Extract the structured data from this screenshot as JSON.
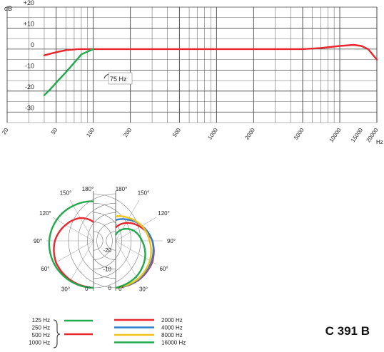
{
  "model_label": "C 391 B",
  "colors": {
    "red": "#e8262c",
    "green": "#1faa4b",
    "blue": "#2f7fd1",
    "yellow": "#f2c218",
    "grid": "#444444"
  },
  "chart_data": [
    {
      "type": "line",
      "name": "frequency-response",
      "ylabel": "dB",
      "xlabel": "Hz",
      "xscale": "log",
      "xlim": [
        20,
        20000
      ],
      "ylim": [
        -35,
        20
      ],
      "y_ticks": [
        "+20",
        "+10",
        "0",
        "-10",
        "-20",
        "-30"
      ],
      "y_tick_values": [
        20,
        10,
        0,
        -10,
        -20,
        -30
      ],
      "x_ticks": [
        "20",
        "50",
        "100",
        "200",
        "500",
        "1000",
        "2000",
        "5000",
        "10000",
        "15000",
        "20000"
      ],
      "x_tick_values": [
        20,
        50,
        100,
        200,
        500,
        1000,
        2000,
        5000,
        10000,
        15000,
        20000
      ],
      "annotation": "75 Hz",
      "series": [
        {
          "color": "red",
          "x": [
            40,
            50,
            60,
            75,
            100,
            200,
            500,
            1000,
            2000,
            5000,
            7000,
            10000,
            13000,
            15000,
            17000,
            20000
          ],
          "y": [
            -3,
            -1.5,
            -0.5,
            0,
            0,
            0,
            0,
            0,
            0,
            0,
            0.5,
            1.5,
            2,
            1.5,
            0,
            -5
          ]
        },
        {
          "color": "green",
          "x": [
            40,
            45,
            50,
            60,
            70,
            75,
            80,
            100
          ],
          "y": [
            -22,
            -19,
            -16,
            -11,
            -6.5,
            -4.5,
            -2.5,
            0
          ]
        }
      ]
    },
    {
      "type": "polar",
      "name": "polar-patterns",
      "angle_labels": [
        "0°",
        "30°",
        "60°",
        "90°",
        "120°",
        "150°",
        "180°"
      ],
      "angle_values": [
        0,
        30,
        60,
        90,
        120,
        150,
        180
      ],
      "ring_labels": [
        "-10",
        "-20"
      ],
      "ring_values": [
        -10,
        -20
      ],
      "ring_label_zero": "0",
      "rlim_db": [
        -25,
        0
      ],
      "left_legend": [
        "125 Hz",
        "250 Hz",
        "500 Hz",
        "1000 Hz"
      ],
      "right_legend": [
        "2000 Hz",
        "4000 Hz",
        "8000 Hz",
        "16000 Hz"
      ],
      "left_series": [
        {
          "color": "red",
          "frequency_group": "125–1000 Hz",
          "angles": [
            0,
            30,
            60,
            90,
            120,
            150,
            180
          ],
          "db": [
            0,
            -0.8,
            -2,
            -4.5,
            -8,
            -11,
            -15
          ]
        },
        {
          "color": "green",
          "frequency_group": "125 Hz",
          "angles": [
            0,
            30,
            60,
            90,
            120,
            150,
            180
          ],
          "db": [
            0,
            -0.3,
            -0.8,
            -1.5,
            -2.5,
            -3.5,
            -4
          ]
        }
      ],
      "right_series": [
        {
          "color": "red",
          "label": "2000 Hz",
          "angles": [
            0,
            30,
            60,
            90,
            120,
            150,
            180
          ],
          "db": [
            0,
            -0.8,
            -2.5,
            -5.5,
            -10,
            -14,
            -18
          ]
        },
        {
          "color": "blue",
          "label": "4000 Hz",
          "angles": [
            0,
            30,
            60,
            90,
            120,
            150,
            180
          ],
          "db": [
            0,
            -1,
            -3,
            -5.5,
            -9,
            -12,
            -14
          ]
        },
        {
          "color": "yellow",
          "label": "8000 Hz",
          "angles": [
            0,
            30,
            60,
            90,
            120,
            150,
            180
          ],
          "db": [
            0,
            -1.5,
            -4,
            -7,
            -9,
            -11,
            -12
          ]
        },
        {
          "color": "green",
          "label": "16000 Hz",
          "angles": [
            0,
            30,
            60,
            90,
            120,
            150,
            180
          ],
          "db": [
            0,
            -3,
            -7,
            -11,
            -14,
            -18,
            -22
          ]
        }
      ]
    }
  ]
}
